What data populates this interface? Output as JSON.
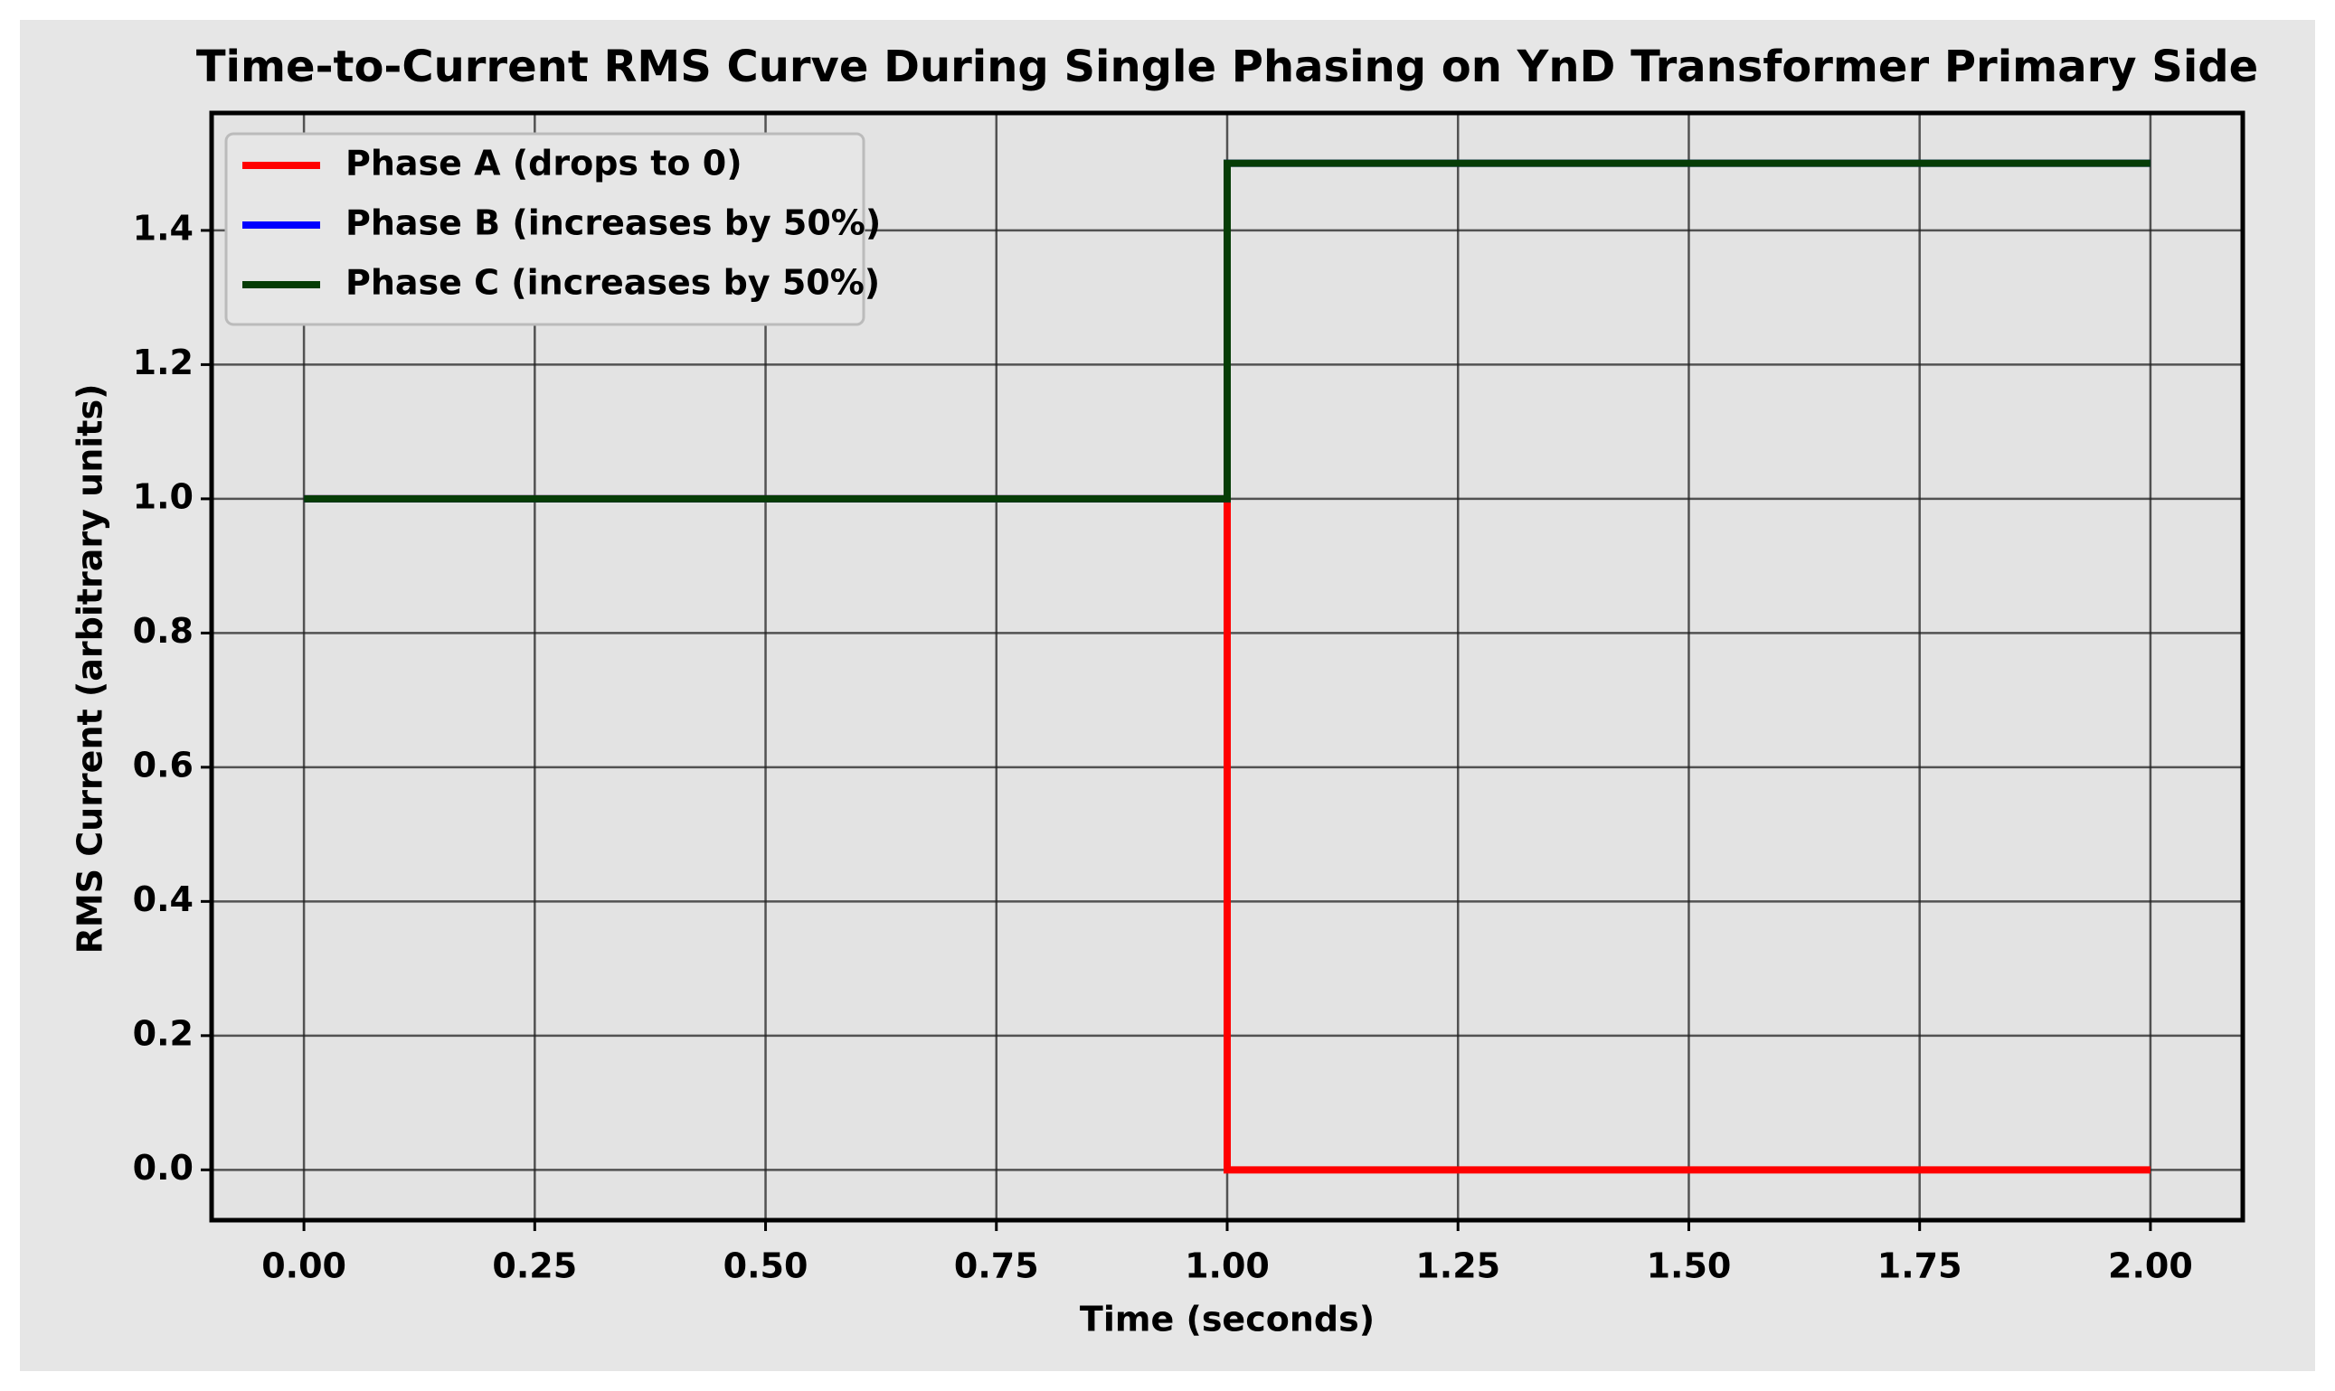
{
  "chart_data": {
    "type": "line",
    "title": "Time-to-Current RMS Curve During Single Phasing on YnD Transformer Primary Side",
    "x_label": "Time (seconds)",
    "y_label": "RMS Current (arbitrary units)",
    "x": [
      0,
      1,
      1,
      2
    ],
    "series": [
      {
        "name": "Phase A (drops to 0)",
        "color": "#ff0000",
        "values": [
          1,
          1,
          0,
          0
        ]
      },
      {
        "name": "Phase B (increases by 50%)",
        "color": "#0000ff",
        "values": [
          1,
          1,
          1.5,
          1.5
        ]
      },
      {
        "name": "Phase C (increases by 50%)",
        "color": "#063d06",
        "values": [
          1,
          1,
          1.5,
          1.5
        ]
      }
    ],
    "xlim": [
      -0.1,
      2.1
    ],
    "ylim": [
      -0.075,
      1.575
    ],
    "xticks": [
      {
        "value": 0,
        "label": "0.00"
      },
      {
        "value": 0.25,
        "label": "0.25"
      },
      {
        "value": 0.5,
        "label": "0.50"
      },
      {
        "value": 0.75,
        "label": "0.75"
      },
      {
        "value": 1,
        "label": "1.00"
      },
      {
        "value": 1.25,
        "label": "1.25"
      },
      {
        "value": 1.5,
        "label": "1.50"
      },
      {
        "value": 1.75,
        "label": "1.75"
      },
      {
        "value": 2,
        "label": "2.00"
      }
    ],
    "yticks": [
      {
        "value": 0,
        "label": "0.0"
      },
      0.2,
      0.4,
      0.6,
      0.8,
      {
        "value": 1,
        "label": "1.0"
      },
      1.2,
      1.4
    ],
    "grid": true,
    "legend": "upper left"
  }
}
